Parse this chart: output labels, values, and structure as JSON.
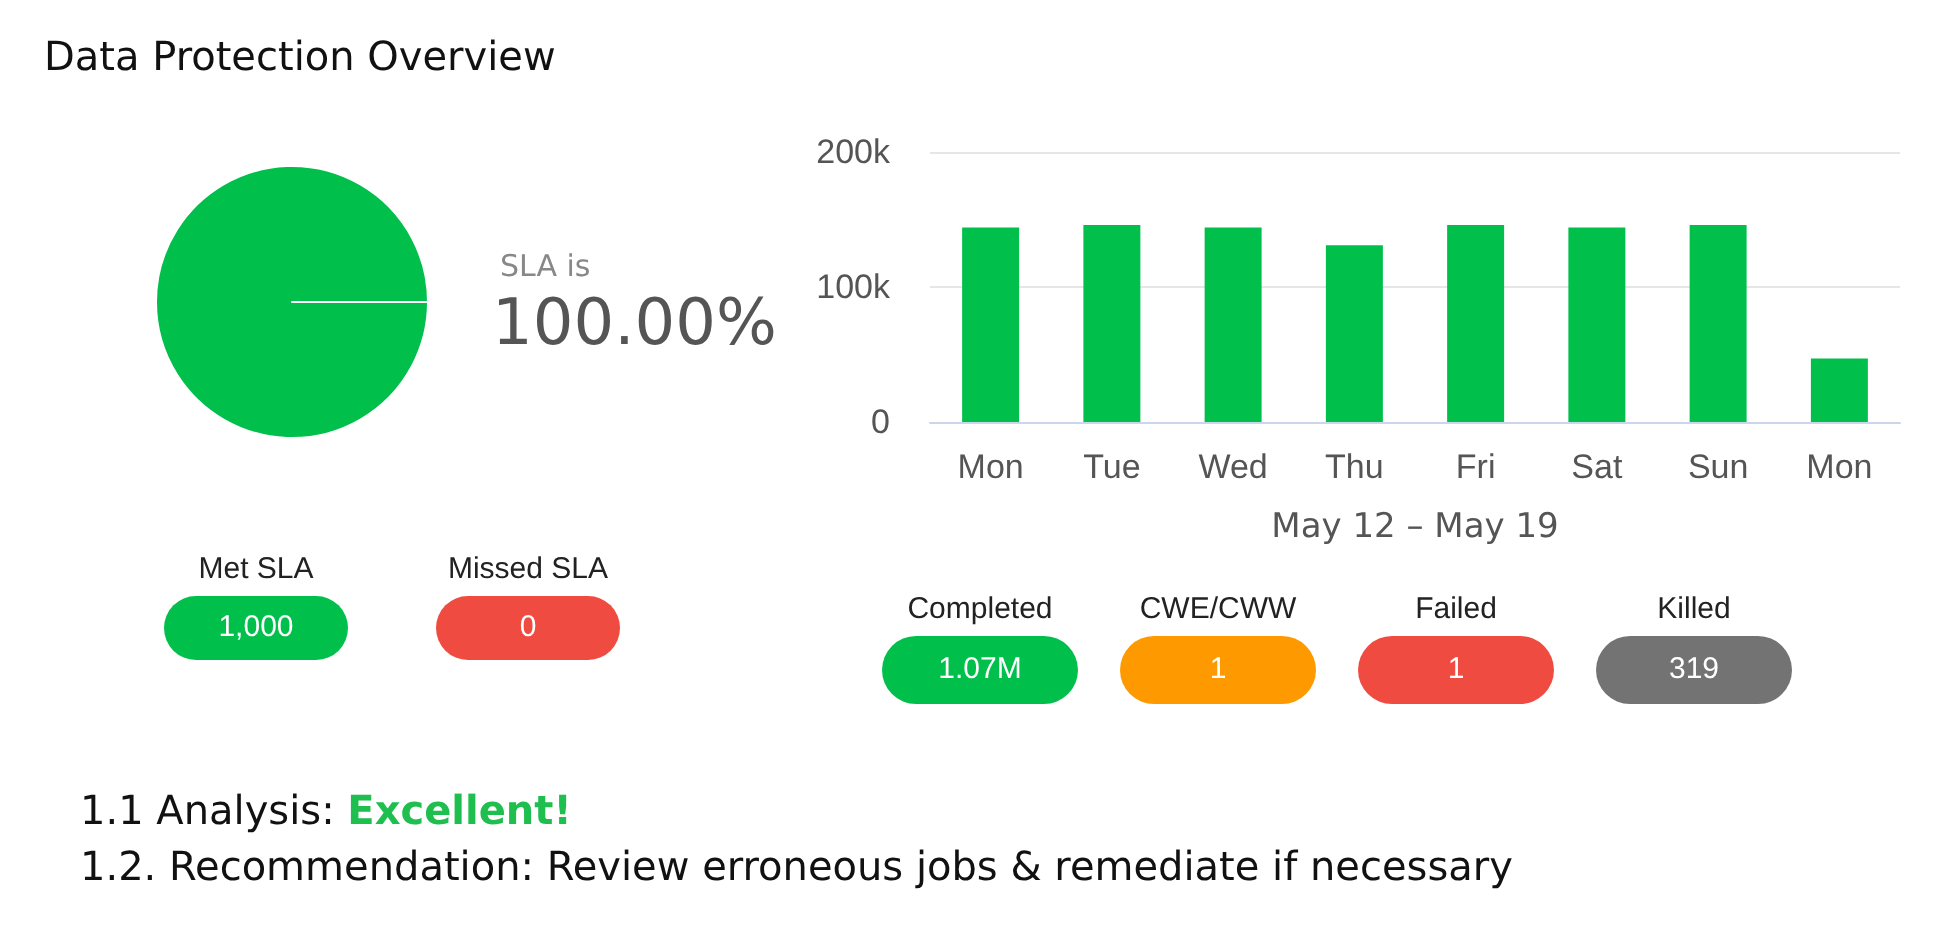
{
  "chart_data": [
    {
      "type": "pie",
      "title": "Data Protection Overview",
      "categories": [
        "Met SLA",
        "Missed SLA"
      ],
      "values": [
        1000,
        0
      ],
      "value_labels": [
        "1,000",
        "0"
      ],
      "colors": [
        "#00c04b",
        "#f04b40"
      ],
      "annotations": [
        "SLA is",
        "100.00%"
      ]
    },
    {
      "type": "bar",
      "xlabel": "May 12 – May 19",
      "categories": [
        "Mon",
        "Tue",
        "Wed",
        "Thu",
        "Fri",
        "Sat",
        "Sun",
        "Mon"
      ],
      "values": [
        144000,
        146000,
        144000,
        131000,
        146000,
        144000,
        146000,
        47000
      ],
      "color": "#00c04b",
      "ylim": [
        0,
        200000
      ],
      "yticks": [
        {
          "value": 0,
          "label": "0"
        },
        {
          "value": 100000,
          "label": "100k"
        },
        {
          "value": 200000,
          "label": "200k"
        }
      ],
      "grid": "y"
    },
    {
      "type": "other",
      "categories": [
        "Completed",
        "CWE/CWW",
        "Failed",
        "Killed"
      ],
      "value_labels": [
        "1.07M",
        "1",
        "1",
        "319"
      ],
      "colors": [
        "#00c04b",
        "#ff9900",
        "#f04b40",
        "#737373"
      ],
      "annotations": [
        "1.1 Analysis:",
        "Excellent!",
        "1.2. Recommendation: Review erroneous jobs & remediate if necessary"
      ]
    }
  ]
}
